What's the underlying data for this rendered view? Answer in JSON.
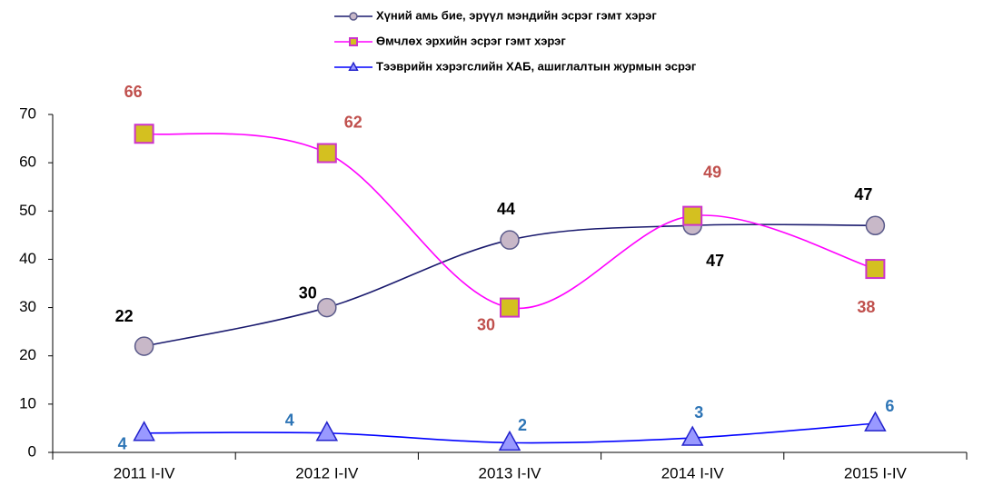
{
  "chart_data": {
    "type": "line",
    "categories": [
      "2011 I-IV",
      "2012 I-IV",
      "2013 I-IV",
      "2014 I-IV",
      "2015 I-IV"
    ],
    "series": [
      {
        "name": "Хүний амь бие, эрүүл мэндийн эсрэг гэмт хэрэг",
        "color": "#1a1a6e",
        "label_color": "#000000",
        "marker": "circle",
        "values": [
          22,
          30,
          44,
          47,
          47
        ]
      },
      {
        "name": "Өмчлөх эрхийн эсрэг гэмт хэрэг",
        "color": "#ff00ff",
        "label_color": "#c0504d",
        "marker": "square",
        "values": [
          66,
          62,
          30,
          49,
          38
        ]
      },
      {
        "name": "Тээврийн хэрэгслийн ХАБ, ашиглалтын журмын эсрэг",
        "color": "#0000ff",
        "label_color": "#2e75b6",
        "marker": "triangle",
        "values": [
          4,
          4,
          2,
          3,
          6
        ]
      }
    ],
    "ylim": [
      0,
      70
    ],
    "yticks": [
      0,
      10,
      20,
      30,
      40,
      50,
      60,
      70
    ],
    "smooth": true,
    "legend": "top"
  }
}
